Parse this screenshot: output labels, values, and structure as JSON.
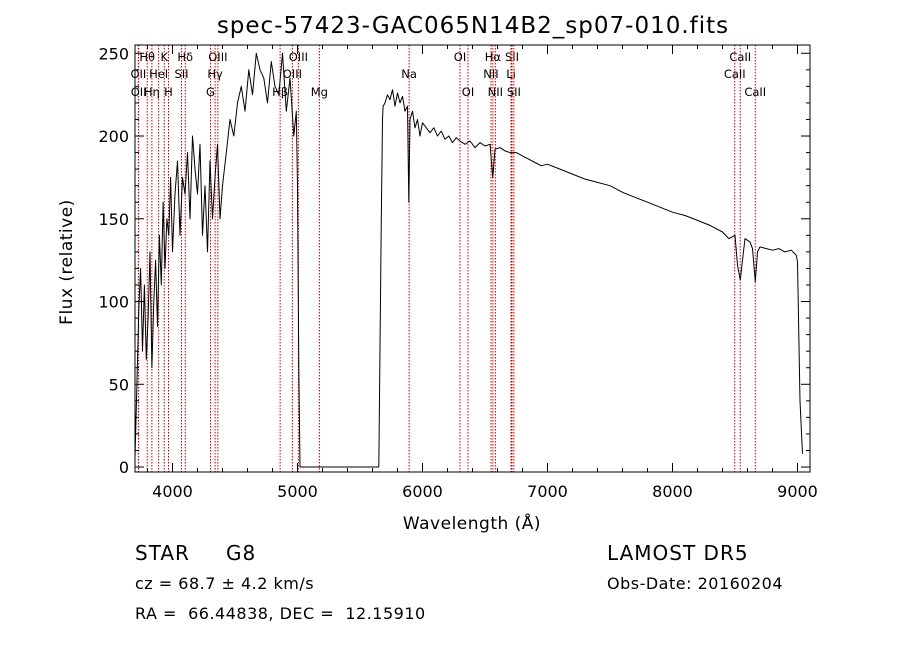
{
  "chart_data": {
    "type": "line",
    "title": "spec-57423-GAC065N14B2_sp07-010.fits",
    "xlabel": "Wavelength (Å)",
    "ylabel": "Flux (relative)",
    "xlim": [
      3700,
      9100
    ],
    "ylim": [
      -3,
      255
    ],
    "x_ticks": [
      4000,
      5000,
      6000,
      7000,
      8000,
      9000
    ],
    "y_ticks": [
      0,
      50,
      100,
      150,
      200,
      250
    ],
    "grid": false,
    "line_color": "#000000",
    "marker_color": "#cc0000",
    "series": [
      {
        "x": [
          3700,
          3715,
          3730,
          3745,
          3760,
          3775,
          3790,
          3805,
          3820,
          3835,
          3850,
          3865,
          3880,
          3895,
          3910,
          3925,
          3940,
          3955,
          3970,
          3985,
          4000,
          4020,
          4040,
          4060,
          4080,
          4100,
          4120,
          4140,
          4160,
          4180,
          4200,
          4220,
          4240,
          4260,
          4280,
          4300,
          4320,
          4340,
          4360,
          4380,
          4400,
          4430,
          4460,
          4490,
          4520,
          4550,
          4580,
          4610,
          4640,
          4670,
          4700,
          4730,
          4760,
          4790,
          4820,
          4850,
          4880,
          4910,
          4940,
          4970,
          4990,
          5000,
          5010,
          5020,
          5030,
          5100,
          5300,
          5500,
          5650,
          5670,
          5680,
          5685,
          5700,
          5720,
          5740,
          5760,
          5780,
          5800,
          5820,
          5840,
          5860,
          5880,
          5890,
          5900,
          5920,
          5940,
          5960,
          5980,
          6000,
          6030,
          6060,
          6090,
          6120,
          6150,
          6180,
          6210,
          6240,
          6270,
          6300,
          6340,
          6380,
          6420,
          6460,
          6500,
          6540,
          6562,
          6580,
          6620,
          6660,
          6700,
          6750,
          6800,
          6850,
          6900,
          6950,
          7000,
          7100,
          7200,
          7300,
          7400,
          7500,
          7600,
          7700,
          7800,
          7900,
          8000,
          8100,
          8200,
          8300,
          8400,
          8450,
          8500,
          8520,
          8542,
          8560,
          8580,
          8600,
          8620,
          8640,
          8662,
          8680,
          8700,
          8750,
          8800,
          8850,
          8900,
          8950,
          8990,
          9000,
          9020,
          9040
        ],
        "y": [
          5,
          50,
          95,
          120,
          70,
          110,
          65,
          90,
          130,
          60,
          100,
          125,
          85,
          140,
          110,
          160,
          120,
          150,
          140,
          175,
          130,
          165,
          185,
          140,
          175,
          165,
          190,
          150,
          200,
          180,
          165,
          195,
          140,
          170,
          130,
          185,
          150,
          175,
          195,
          150,
          170,
          190,
          210,
          200,
          220,
          230,
          215,
          240,
          225,
          250,
          240,
          235,
          220,
          245,
          230,
          225,
          250,
          215,
          235,
          200,
          215,
          170,
          60,
          0,
          0,
          0,
          0,
          0,
          0,
          150,
          210,
          218,
          220,
          225,
          222,
          228,
          218,
          226,
          220,
          224,
          215,
          218,
          160,
          210,
          215,
          205,
          210,
          200,
          208,
          205,
          202,
          205,
          200,
          203,
          198,
          200,
          196,
          199,
          197,
          195,
          197,
          193,
          196,
          194,
          195,
          175,
          192,
          193,
          191,
          190,
          190,
          188,
          186,
          184,
          182,
          183,
          180,
          177,
          174,
          172,
          170,
          166,
          163,
          160,
          157,
          154,
          152,
          149,
          146,
          142,
          138,
          140,
          122,
          113,
          125,
          138,
          137,
          136,
          132,
          112,
          130,
          133,
          132,
          131,
          132,
          130,
          131,
          128,
          124,
          40,
          8
        ]
      }
    ],
    "line_markers": [
      {
        "label": "Hθ",
        "x": 3798,
        "row": 1
      },
      {
        "label": "OII",
        "x": 3727,
        "row": 2
      },
      {
        "label": "OII",
        "x": 3729,
        "row": 3
      },
      {
        "label": "K",
        "x": 3934,
        "row": 1
      },
      {
        "label": "HeI",
        "x": 3889,
        "row": 2
      },
      {
        "label": "Hη",
        "x": 3835,
        "row": 3
      },
      {
        "label": "H",
        "x": 3968,
        "row": 3
      },
      {
        "label": "Hδ",
        "x": 4102,
        "row": 1
      },
      {
        "label": "SII",
        "x": 4072,
        "row": 2
      },
      {
        "label": "OIII",
        "x": 4363,
        "row": 1
      },
      {
        "label": "Hγ",
        "x": 4341,
        "row": 2
      },
      {
        "label": "G",
        "x": 4304,
        "row": 3
      },
      {
        "label": "OIII",
        "x": 5007,
        "row": 1
      },
      {
        "label": "OIII",
        "x": 4959,
        "row": 2
      },
      {
        "label": "Hβ",
        "x": 4861,
        "row": 3
      },
      {
        "label": "Mg",
        "x": 5175,
        "row": 3
      },
      {
        "label": "Na",
        "x": 5893,
        "row": 2
      },
      {
        "label": "OI",
        "x": 6300,
        "row": 1
      },
      {
        "label": "OI",
        "x": 6364,
        "row": 3
      },
      {
        "label": "Hα",
        "x": 6563,
        "row": 1
      },
      {
        "label": "NII",
        "x": 6548,
        "row": 2
      },
      {
        "label": "NII",
        "x": 6583,
        "row": 3
      },
      {
        "label": "SII",
        "x": 6716,
        "row": 1
      },
      {
        "label": "Li",
        "x": 6708,
        "row": 2
      },
      {
        "label": "SII",
        "x": 6731,
        "row": 3
      },
      {
        "label": "CaII",
        "x": 8542,
        "row": 1
      },
      {
        "label": "CaII",
        "x": 8498,
        "row": 2
      },
      {
        "label": "CaII",
        "x": 8662,
        "row": 3
      }
    ]
  },
  "info": {
    "class": "STAR",
    "subclass": "G8",
    "cz": "cz = 68.7 ± 4.2 km/s",
    "coords": "RA =  66.44838, DEC =  12.15910",
    "survey": "LAMOST DR5",
    "obs_date": "Obs-Date: 20160204"
  }
}
